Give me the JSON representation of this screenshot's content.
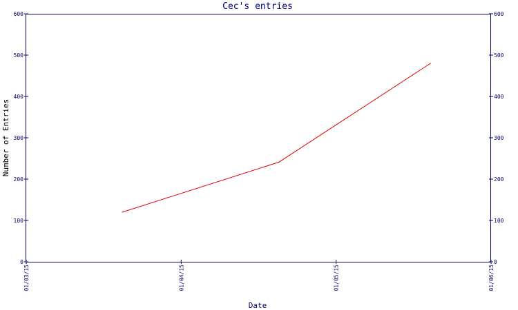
{
  "chart_data": {
    "type": "line",
    "title": "Cec's entries",
    "xlabel": "Date",
    "ylabel": "Number of Entries",
    "x_ticks": [
      "01/03/15",
      "01/04/15",
      "01/05/15",
      "01/06/15"
    ],
    "y_ticks": [
      "0",
      "100",
      "200",
      "300",
      "400",
      "500",
      "600"
    ],
    "ylim": [
      0,
      600
    ],
    "xlim": [
      "2015-03-01",
      "2015-06-01"
    ],
    "y_axes": "left-and-right",
    "grid": false,
    "series": [
      {
        "color": "#e00000",
        "points": [
          {
            "x": "2015-03-20",
            "y": 120
          },
          {
            "x": "2015-04-20",
            "y": 241
          },
          {
            "x": "2015-05-20",
            "y": 480
          }
        ]
      }
    ]
  },
  "colors": {
    "axis": "#000066",
    "title": "#000080",
    "line": "#e00000",
    "text": "#000000"
  }
}
